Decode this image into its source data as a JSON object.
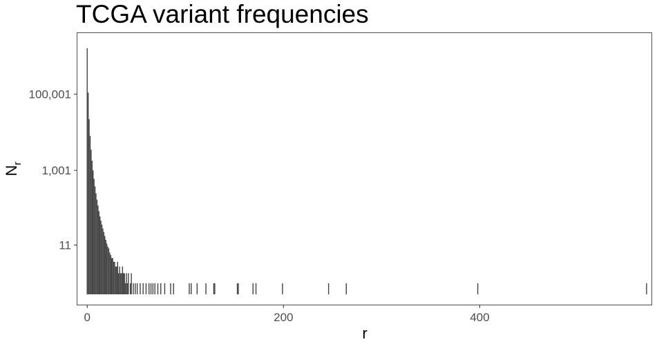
{
  "chart_data": {
    "type": "bar",
    "title": "TCGA variant frequencies",
    "xlabel": "r",
    "ylabel": "N",
    "ylabel_subscript": "r",
    "y_scale": "log",
    "xlim": [
      -10,
      575
    ],
    "ylim": [
      0.3,
      4000000
    ],
    "x_ticks": [
      0,
      200,
      400
    ],
    "x_tick_labels": [
      "0",
      "200",
      "400"
    ],
    "y_ticks": [
      11,
      1001,
      100001
    ],
    "y_tick_labels": [
      "11",
      "1,001",
      "100,001"
    ],
    "grid": false,
    "bar_color": "#444444",
    "bins": [
      {
        "r": 1,
        "n": 1600000
      },
      {
        "r": 2,
        "n": 110000
      },
      {
        "r": 3,
        "n": 22000
      },
      {
        "r": 4,
        "n": 8000
      },
      {
        "r": 5,
        "n": 3500
      },
      {
        "r": 6,
        "n": 1800
      },
      {
        "r": 7,
        "n": 1000
      },
      {
        "r": 8,
        "n": 600
      },
      {
        "r": 9,
        "n": 380
      },
      {
        "r": 10,
        "n": 250
      },
      {
        "r": 11,
        "n": 170
      },
      {
        "r": 12,
        "n": 120
      },
      {
        "r": 13,
        "n": 85
      },
      {
        "r": 14,
        "n": 62
      },
      {
        "r": 15,
        "n": 48
      },
      {
        "r": 16,
        "n": 38
      },
      {
        "r": 17,
        "n": 30
      },
      {
        "r": 18,
        "n": 24
      },
      {
        "r": 19,
        "n": 19
      },
      {
        "r": 20,
        "n": 15
      },
      {
        "r": 21,
        "n": 12
      },
      {
        "r": 22,
        "n": 10
      },
      {
        "r": 23,
        "n": 9
      },
      {
        "r": 24,
        "n": 7
      },
      {
        "r": 25,
        "n": 6
      },
      {
        "r": 26,
        "n": 5
      },
      {
        "r": 27,
        "n": 5
      },
      {
        "r": 28,
        "n": 4
      },
      {
        "r": 29,
        "n": 4
      },
      {
        "r": 30,
        "n": 3
      },
      {
        "r": 31,
        "n": 3
      },
      {
        "r": 32,
        "n": 4
      },
      {
        "r": 33,
        "n": 2
      },
      {
        "r": 34,
        "n": 3
      },
      {
        "r": 35,
        "n": 2
      },
      {
        "r": 36,
        "n": 2
      },
      {
        "r": 37,
        "n": 3
      },
      {
        "r": 38,
        "n": 2
      },
      {
        "r": 39,
        "n": 2
      },
      {
        "r": 40,
        "n": 1
      },
      {
        "r": 41,
        "n": 2
      },
      {
        "r": 42,
        "n": 1
      },
      {
        "r": 43,
        "n": 2
      },
      {
        "r": 45,
        "n": 1
      },
      {
        "r": 46,
        "n": 2
      },
      {
        "r": 48,
        "n": 1
      },
      {
        "r": 50,
        "n": 1
      },
      {
        "r": 52,
        "n": 1
      },
      {
        "r": 55,
        "n": 1
      },
      {
        "r": 58,
        "n": 1
      },
      {
        "r": 61,
        "n": 1
      },
      {
        "r": 64,
        "n": 1
      },
      {
        "r": 66,
        "n": 1
      },
      {
        "r": 68,
        "n": 1
      },
      {
        "r": 70,
        "n": 1
      },
      {
        "r": 73,
        "n": 1
      },
      {
        "r": 76,
        "n": 1
      },
      {
        "r": 80,
        "n": 1
      },
      {
        "r": 86,
        "n": 1
      },
      {
        "r": 89,
        "n": 1
      },
      {
        "r": 105,
        "n": 1
      },
      {
        "r": 107,
        "n": 1
      },
      {
        "r": 113,
        "n": 1
      },
      {
        "r": 122,
        "n": 1
      },
      {
        "r": 130,
        "n": 1
      },
      {
        "r": 131,
        "n": 1
      },
      {
        "r": 154,
        "n": 1
      },
      {
        "r": 155,
        "n": 1
      },
      {
        "r": 170,
        "n": 1
      },
      {
        "r": 173,
        "n": 1
      },
      {
        "r": 200,
        "n": 1
      },
      {
        "r": 247,
        "n": 1
      },
      {
        "r": 265,
        "n": 1
      },
      {
        "r": 399,
        "n": 1
      },
      {
        "r": 571,
        "n": 1
      }
    ]
  }
}
